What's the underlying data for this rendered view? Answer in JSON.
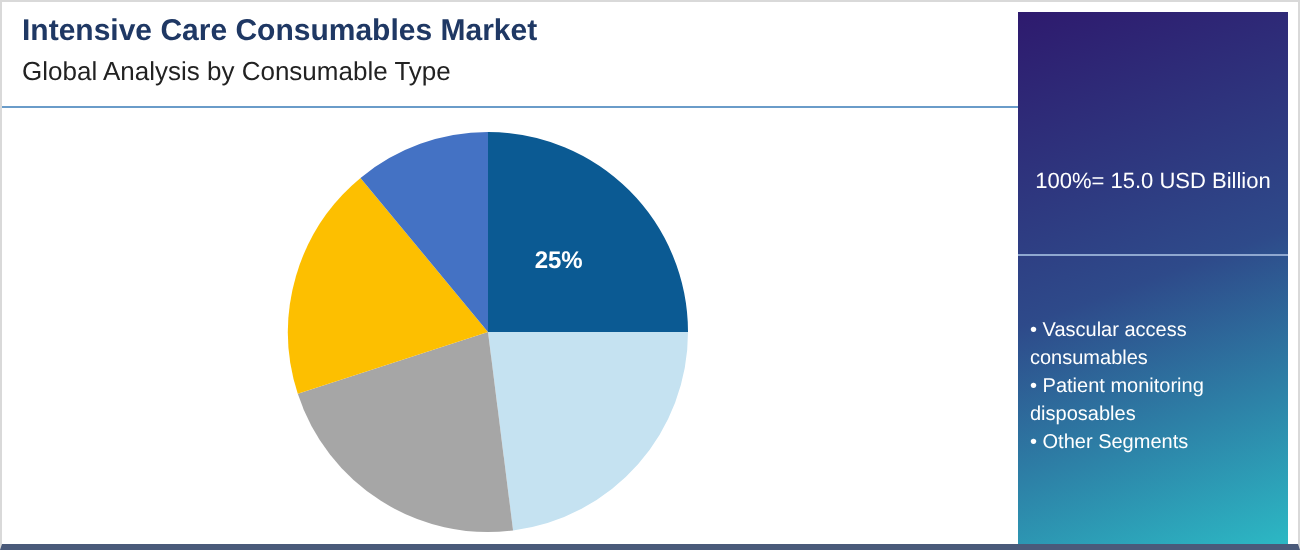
{
  "chart_data": {
    "type": "pie",
    "title": "Intensive Care Consumables Market",
    "subtitle": "Global Analysis by Consumable Type",
    "categories": [
      null,
      null,
      null,
      null,
      null
    ],
    "values": [
      25,
      23,
      22,
      19,
      11
    ],
    "colors": [
      "#0b5a93",
      "#c5e2f1",
      "#a6a6a6",
      "#fdbf00",
      "#4472c4"
    ],
    "value_labels": [
      "25%",
      null,
      null,
      null,
      null
    ],
    "legend": false,
    "annotations": [
      "100%= 15.0 USD Billion",
      "• Vascular access consumables",
      "• Patient monitoring disposables",
      "• Other Segments"
    ]
  }
}
